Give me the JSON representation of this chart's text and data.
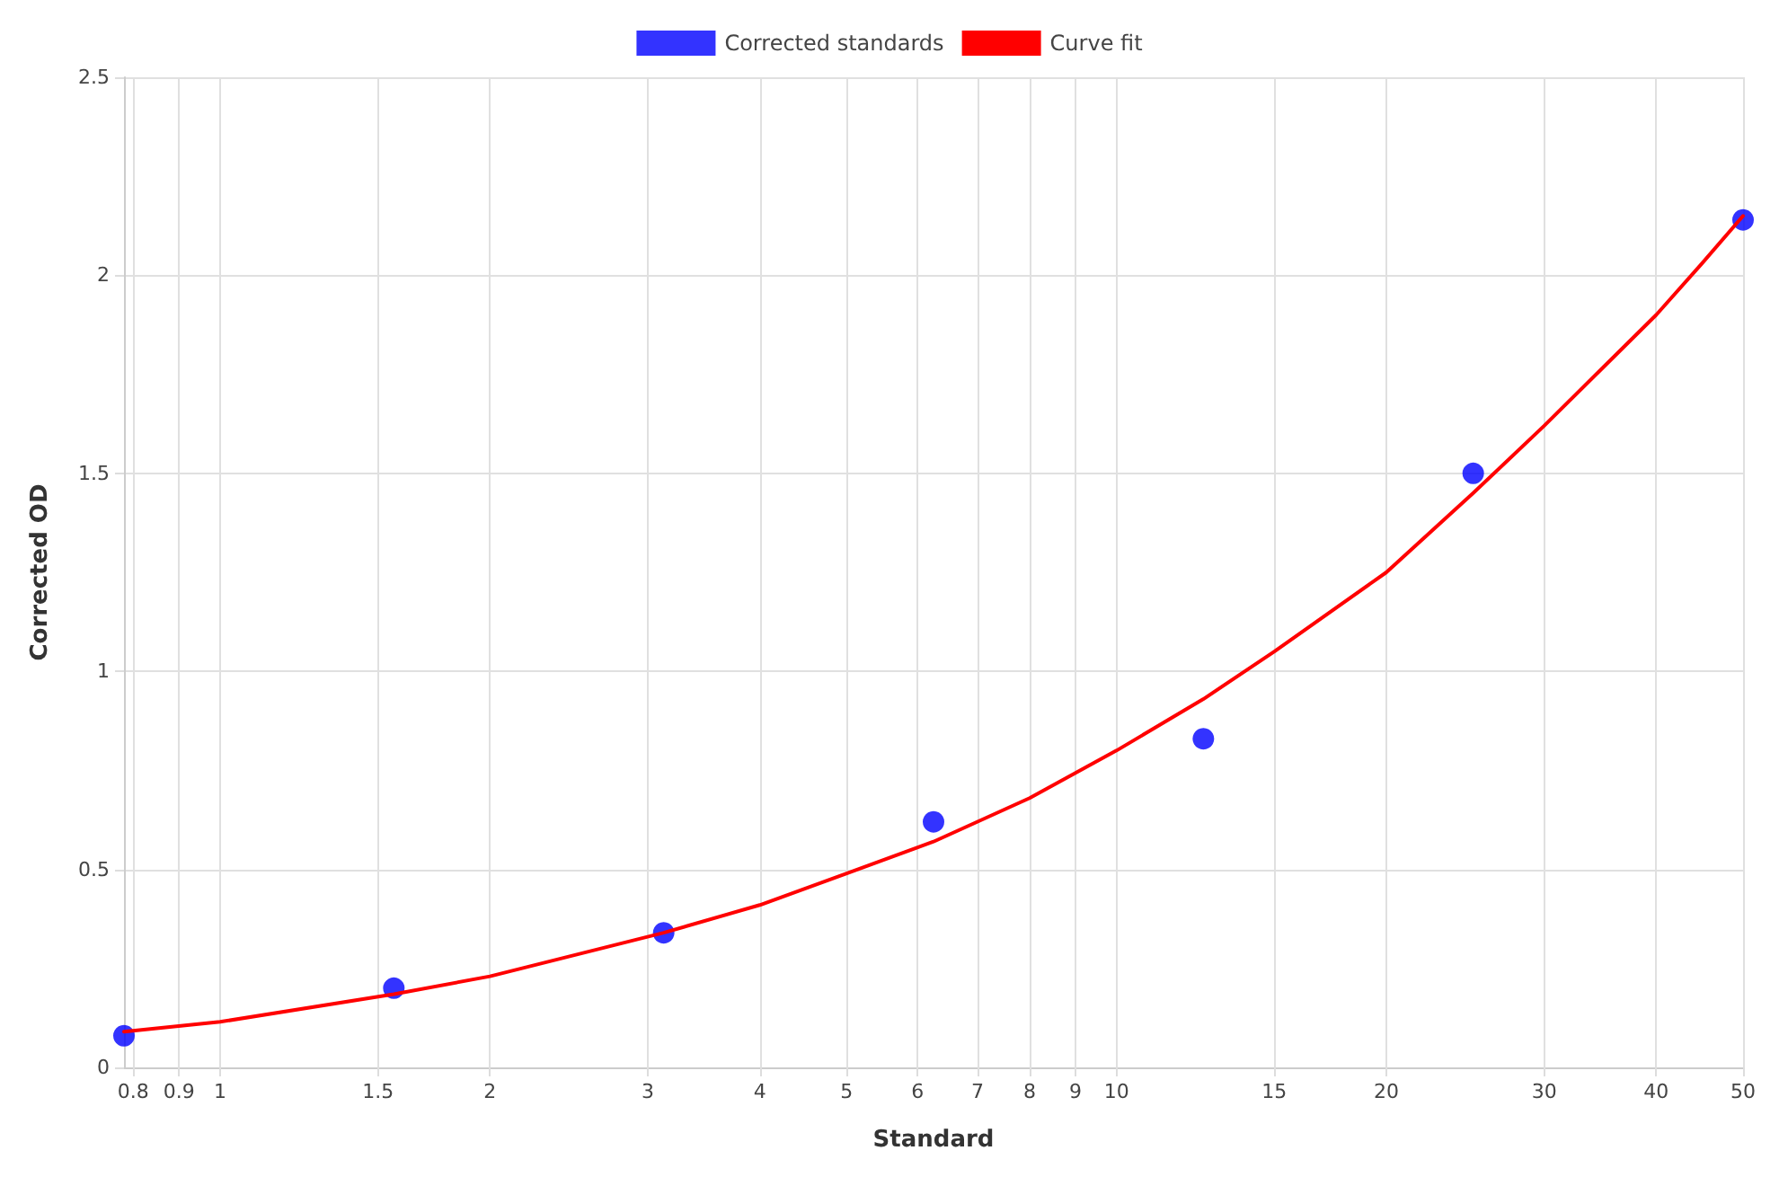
{
  "chart_data": {
    "type": "scatter",
    "xlabel": "Standard",
    "ylabel": "Corrected OD",
    "log": "x",
    "grid": true,
    "legend": "top",
    "marker": "circle",
    "x": [
      0.78125,
      1.5625,
      3.125,
      6.25,
      12.5,
      25,
      50
    ],
    "xlim": [
      0.78125,
      50
    ],
    "xticks": [
      0.8,
      0.9,
      1,
      1.5,
      2,
      3,
      4,
      5,
      6,
      7,
      8,
      9,
      10,
      15,
      20,
      30,
      40,
      50
    ],
    "ylim": [
      0,
      2.5
    ],
    "yticks": [
      0,
      0.5,
      1,
      1.5,
      2,
      2.5
    ],
    "series": [
      {
        "name": "Corrected standards",
        "color": "#0000ff",
        "values": [
          0.08,
          0.2,
          0.34,
          0.62,
          0.83,
          1.5,
          2.14
        ]
      },
      {
        "name": "Curve fit",
        "type": "line",
        "color": "#ff0000",
        "marker": "none",
        "x": [
          0.78125,
          1,
          1.5625,
          2,
          3.125,
          4,
          5,
          6.25,
          8,
          10,
          12.5,
          15,
          20,
          25,
          30,
          35,
          40,
          45,
          50
        ],
        "values": [
          0.09,
          0.115,
          0.185,
          0.23,
          0.34,
          0.41,
          0.49,
          0.57,
          0.68,
          0.8,
          0.93,
          1.05,
          1.25,
          1.45,
          1.62,
          1.77,
          1.9,
          2.03,
          2.15
        ]
      }
    ]
  }
}
